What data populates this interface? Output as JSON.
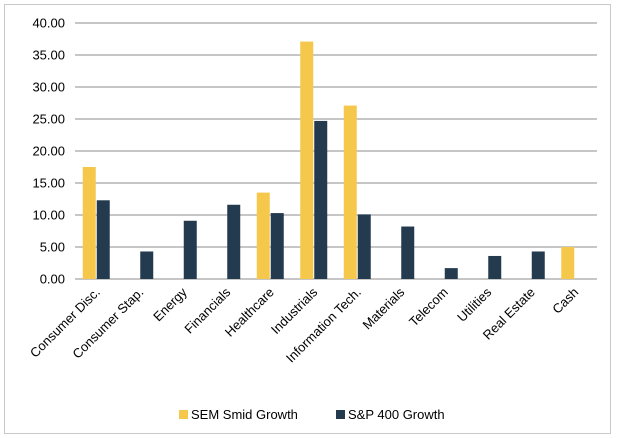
{
  "chart_data": {
    "type": "bar",
    "title": "",
    "xlabel": "",
    "ylabel": "",
    "ylim": [
      0,
      40
    ],
    "y_ticks": [
      "0.00",
      "5.00",
      "10.00",
      "15.00",
      "20.00",
      "25.00",
      "30.00",
      "35.00",
      "40.00"
    ],
    "grid": true,
    "legend_position": "bottom",
    "categories": [
      "Consumer Disc.",
      "Consumer Stap.",
      "Energy",
      "Financials",
      "Healthcare",
      "Industrials",
      "Information Tech.",
      "Materials",
      "Telecom",
      "Utilities",
      "Real Estate",
      "Cash"
    ],
    "series": [
      {
        "name": "SEM Smid Growth",
        "color": "#f5c84c",
        "values": [
          17.5,
          0,
          0,
          0,
          13.5,
          37.1,
          27.1,
          0,
          0,
          0,
          0,
          5.0
        ]
      },
      {
        "name": "S&P 400 Growth",
        "color": "#243b4f",
        "values": [
          12.3,
          4.3,
          9.1,
          11.6,
          10.3,
          24.7,
          10.1,
          8.2,
          1.7,
          3.6,
          4.3,
          0
        ]
      }
    ]
  }
}
